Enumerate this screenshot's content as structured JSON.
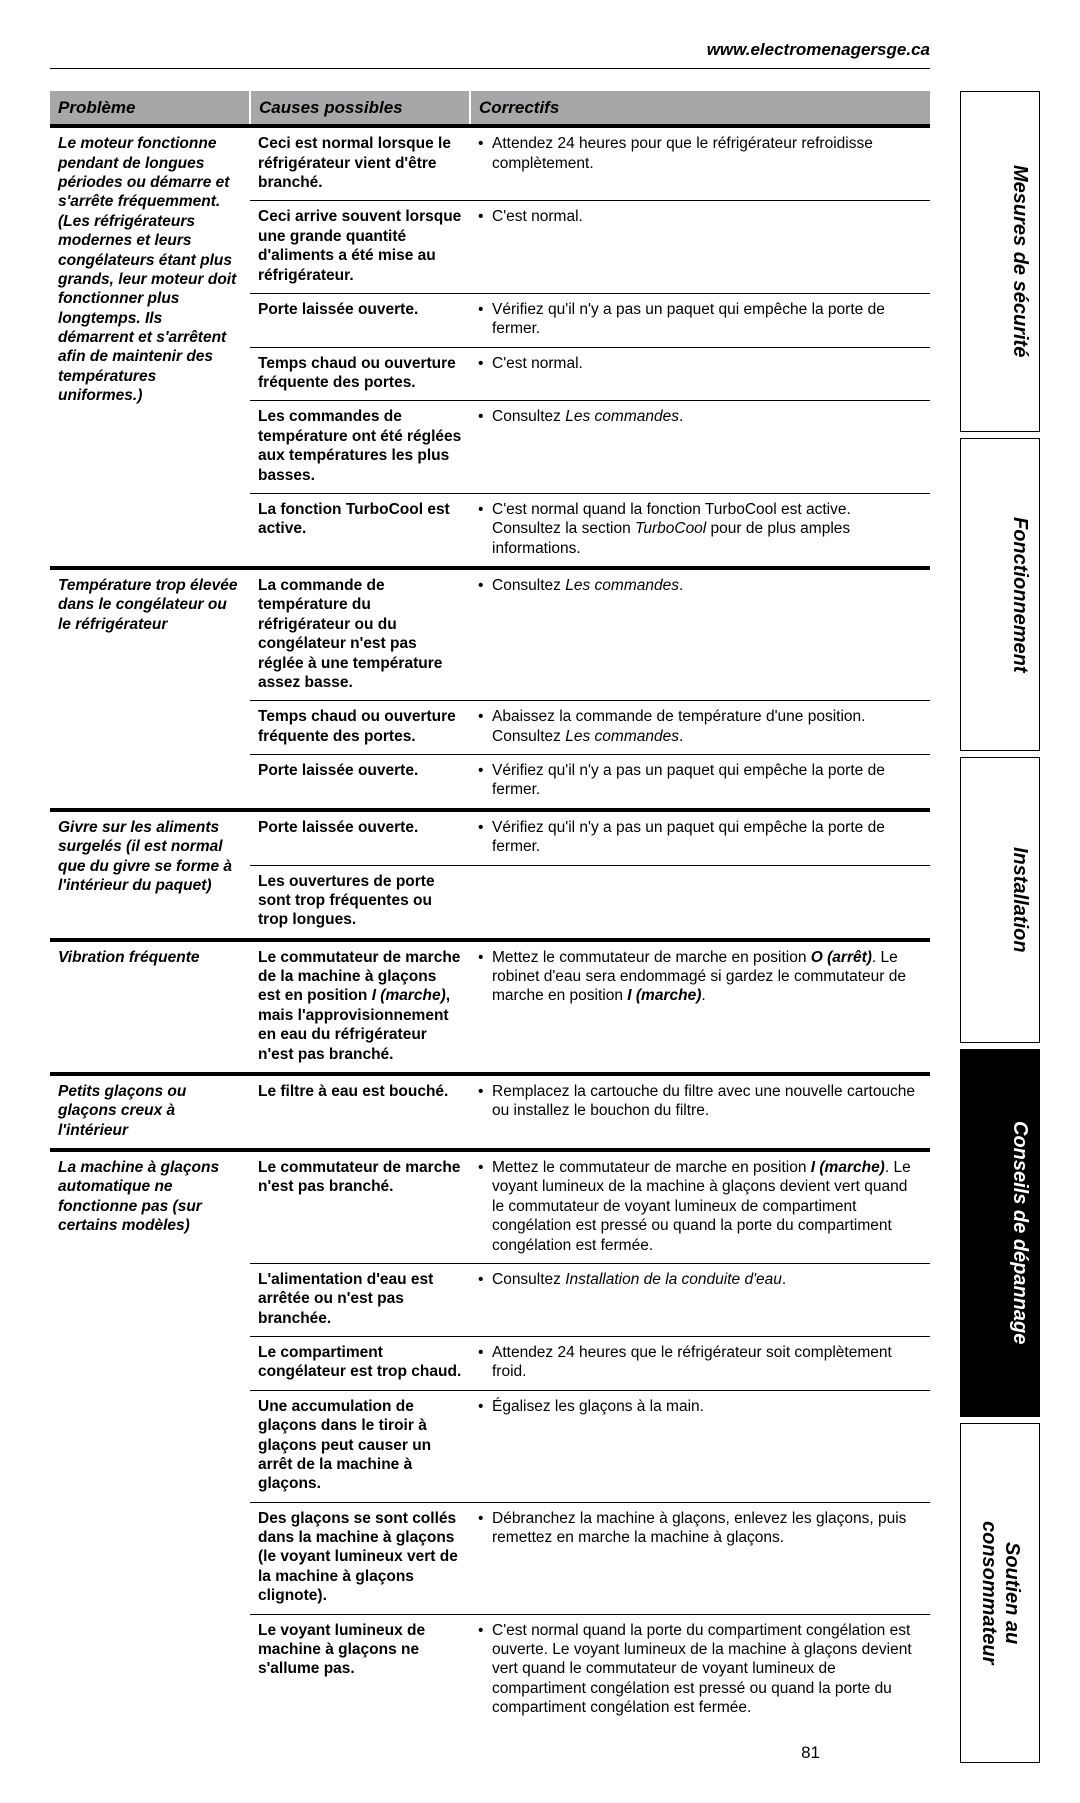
{
  "url": "www.electromenagersge.ca",
  "page_number": "81",
  "columns": {
    "problem": "Problème",
    "causes": "Causes possibles",
    "correct": "Correctifs"
  },
  "tabs": [
    {
      "label": "Mesures de sécurité",
      "style": "light",
      "flex": 1.1
    },
    {
      "label": "Fonctionnement",
      "style": "light",
      "flex": 1.0
    },
    {
      "label": "Installation",
      "style": "light",
      "flex": 0.9
    },
    {
      "label": "Conseils de dépannage",
      "style": "dark",
      "flex": 1.2
    },
    {
      "label_lines": [
        "Soutien au",
        "consommateur"
      ],
      "style": "light",
      "flex": 1.1
    }
  ],
  "rows": [
    {
      "problem_html": "Le moteur fonctionne pendant de longues périodes ou démarre et s'arrête fréquemment. (Les réfrigérateurs modernes et leurs congélateurs étant plus grands, leur moteur doit fonctionner plus longtemps. Ils démarrent et s'arrêtent afin de maintenir des températures uniformes.)",
      "sub": [
        {
          "cause": "Ceci est normal lorsque le réfrigérateur vient d'être branché.",
          "correct": "Attendez 24 heures pour que le réfrigérateur refroidisse complètement."
        },
        {
          "cause": "Ceci arrive souvent lorsque une grande quantité d'aliments a été mise au réfrigérateur.",
          "correct": "C'est normal."
        },
        {
          "cause": "Porte laissée ouverte.",
          "correct": "Vérifiez qu'il n'y a pas un paquet qui empêche la porte de fermer."
        },
        {
          "cause": "Temps chaud ou ouverture fréquente des portes.",
          "correct": "C'est normal."
        },
        {
          "cause": "Les commandes de température ont été réglées  aux températures les plus basses.",
          "correct_html": "Consultez <span class='ital'>Les commandes</span>."
        },
        {
          "cause": "La fonction TurboCool est active.",
          "correct_html": "C'est normal quand la fonction TurboCool est active. Consultez la section <span class='ital'>TurboCool</span> pour de plus amples informations."
        }
      ]
    },
    {
      "problem_html": "Température trop élevée dans le congélateur ou le réfrigérateur",
      "sub": [
        {
          "cause": "La commande de température du réfrigérateur ou du congélateur n'est pas réglée à une température assez basse.",
          "correct_html": "Consultez <span class='ital'>Les commandes</span>."
        },
        {
          "cause": "Temps chaud ou ouverture fréquente des portes.",
          "correct_html": "Abaissez la commande de température d'une position. Consultez <span class='ital'>Les commandes</span>."
        },
        {
          "cause": "Porte laissée ouverte.",
          "correct": "Vérifiez qu'il n'y a pas un paquet qui empêche la porte de fermer."
        }
      ]
    },
    {
      "problem_html": "Givre sur les aliments surgelés (il est normal que du givre se forme à l'intérieur du paquet)",
      "sub": [
        {
          "cause": "Porte laissée ouverte.",
          "correct": "Vérifiez qu'il n'y a pas un paquet qui empêche la porte de fermer."
        },
        {
          "cause": "Les ouvertures de porte sont trop fréquentes ou trop longues.",
          "correct": ""
        }
      ]
    },
    {
      "problem_html": "Vibration fréquente",
      "sub": [
        {
          "cause_html": "Le commutateur de marche de la machine à glaçons est en position <span class='ital'>I (marche)</span>, mais l'approvisionnement en eau du réfrigérateur n'est pas branché.",
          "correct_html": "Mettez le commutateur de marche en position <span class='ital bold'>O (arrêt)</span>. Le robinet d'eau sera endommagé si gardez le commutateur de marche en position <span class='ital bold'>I (marche)</span>."
        }
      ]
    },
    {
      "problem_html": "Petits glaçons ou glaçons creux à l'intérieur",
      "sub": [
        {
          "cause": "Le filtre à eau est bouché.",
          "correct": "Remplacez la cartouche du filtre avec une nouvelle cartouche ou installez le bouchon du filtre."
        }
      ]
    },
    {
      "problem_html": "La machine à glaçons automatique ne fonctionne pas (sur certains modèles)",
      "sub": [
        {
          "cause": "Le commutateur de marche n'est pas branché.",
          "correct_html": "Mettez le commutateur de marche en position <span class='ital bold'>I (marche)</span>. Le voyant lumineux de la machine à glaçons devient vert quand le commutateur de voyant lumineux de compartiment congélation est pressé ou quand la porte du compartiment congélation est fermée."
        },
        {
          "cause": "L'alimentation d'eau est arrêtée ou n'est pas branchée.",
          "correct_html": "Consultez <span class='ital'>Installation de la conduite d'eau</span>."
        },
        {
          "cause": "Le compartiment congélateur est trop chaud.",
          "correct": "Attendez 24 heures que le réfrigérateur soit complètement froid."
        },
        {
          "cause": "Une accumulation de glaçons dans le tiroir à glaçons peut causer un arrêt de la machine à glaçons.",
          "correct": "Égalisez les glaçons à la main."
        },
        {
          "cause": "Des glaçons se sont collés dans la machine à glaçons (le voyant lumineux vert de la machine à glaçons clignote).",
          "correct": "Débranchez la machine à glaçons, enlevez les glaçons, puis remettez en marche la machine à glaçons."
        },
        {
          "cause": "Le voyant lumineux de machine à glaçons ne s'allume pas.",
          "correct": "C'est normal quand la porte du compartiment congélation est ouverte. Le voyant lumineux de la machine à glaçons devient vert quand le commutateur de voyant lumineux de compartiment congélation est pressé ou quand la porte du compartiment congélation est fermée."
        }
      ]
    }
  ]
}
